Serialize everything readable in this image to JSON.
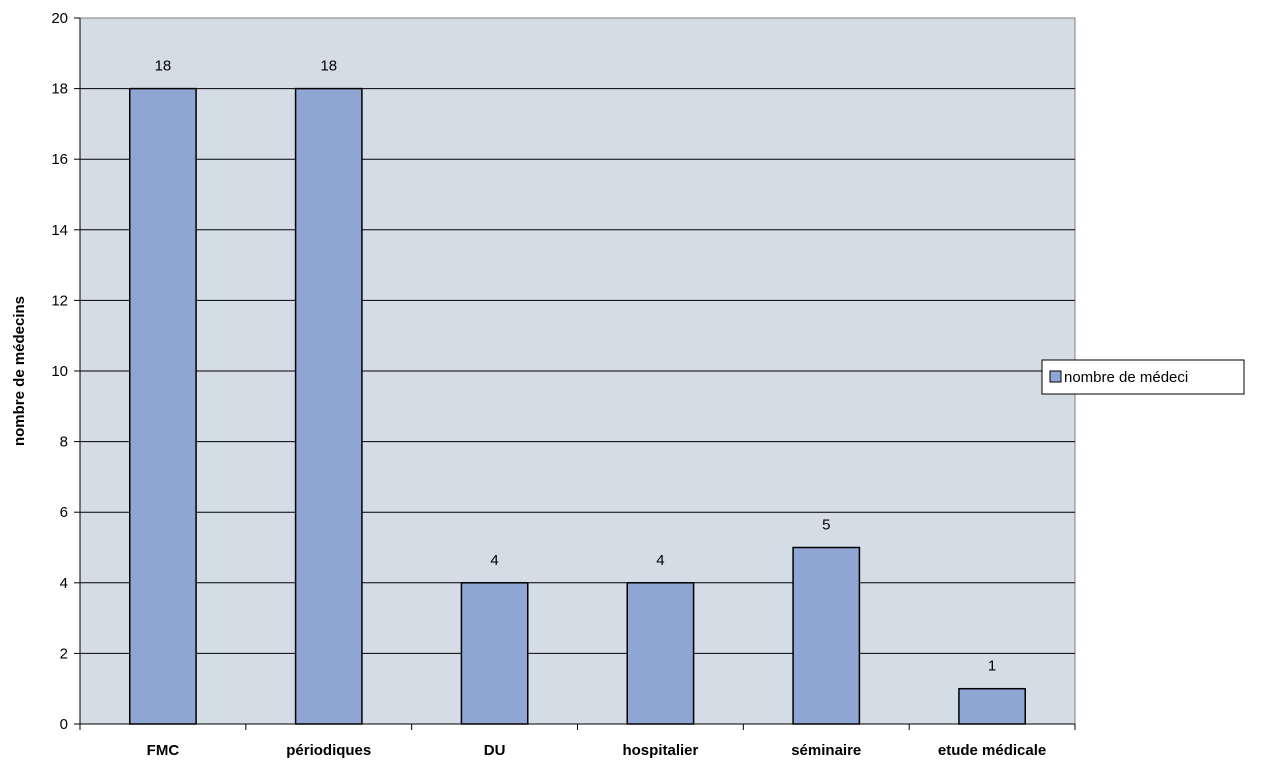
{
  "chart_data": {
    "type": "bar",
    "categories": [
      "FMC",
      "périodiques",
      "DU",
      "hospitalier",
      "séminaire",
      "etude médicale"
    ],
    "series": [
      {
        "name": "nombre de médeci",
        "values": [
          18,
          18,
          4,
          4,
          5,
          1
        ]
      }
    ],
    "data_labels": [
      "18",
      "18",
      "4",
      "4",
      "5",
      "1"
    ],
    "title": "",
    "xlabel": "",
    "ylabel": "nombre de médecins",
    "ylim": [
      0,
      20
    ],
    "yticks": [
      0,
      2,
      4,
      6,
      8,
      10,
      12,
      14,
      16,
      18,
      20
    ],
    "grid": true,
    "legend_position": "right",
    "colors": {
      "plot_background": "#d4dce6",
      "bar_fill": "#8fa6d4",
      "bar_stroke": "#000000",
      "gridline": "#000000"
    }
  }
}
